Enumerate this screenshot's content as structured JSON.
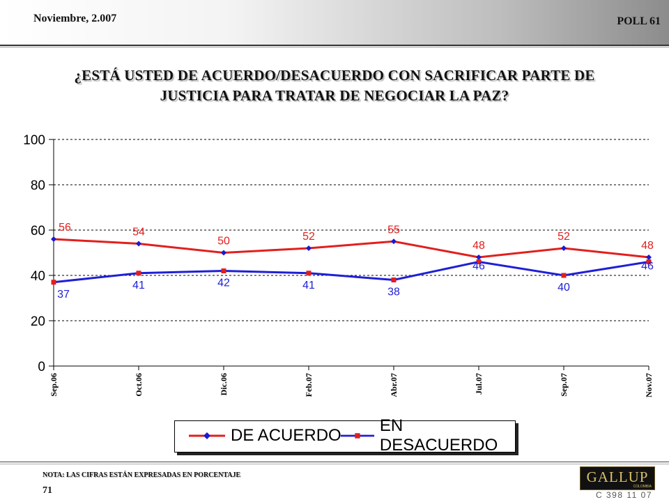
{
  "header": {
    "date": "Noviembre, 2.007",
    "poll": "POLL 61"
  },
  "title": {
    "line1": "¿ESTÁ USTED DE ACUERDO/DESACUERDO CON SACRIFICAR PARTE DE",
    "line2": "JUSTICIA PARA TRATAR DE NEGOCIAR LA PAZ?"
  },
  "chart_data": {
    "type": "line",
    "categories": [
      "Sep.06",
      "Oct.06",
      "Dic.06",
      "Feb.07",
      "Abr.07",
      "Jul.07",
      "Sep.07",
      "Nov.07"
    ],
    "series": [
      {
        "name": "DE ACUERDO",
        "values": [
          56,
          54,
          50,
          52,
          55,
          48,
          52,
          48
        ],
        "color": "#e0201e",
        "marker_color": "#1a1ad0"
      },
      {
        "name": "EN DESACUERDO",
        "values": [
          37,
          41,
          42,
          41,
          38,
          46,
          40,
          46
        ],
        "color": "#1f1fd6",
        "marker_color": "#e0201e"
      }
    ],
    "ylim": [
      0,
      100
    ],
    "yticks": [
      0,
      20,
      40,
      60,
      80,
      100
    ],
    "grid": true,
    "legend_position": "bottom"
  },
  "footer": {
    "note": "NOTA: LAS CIFRAS ESTÁN EXPRESADAS EN PORCENTAJE",
    "page": "71",
    "code": "C 398 11 07"
  },
  "logo": {
    "main": "GALLUP",
    "sub": "COLOMBIA"
  }
}
